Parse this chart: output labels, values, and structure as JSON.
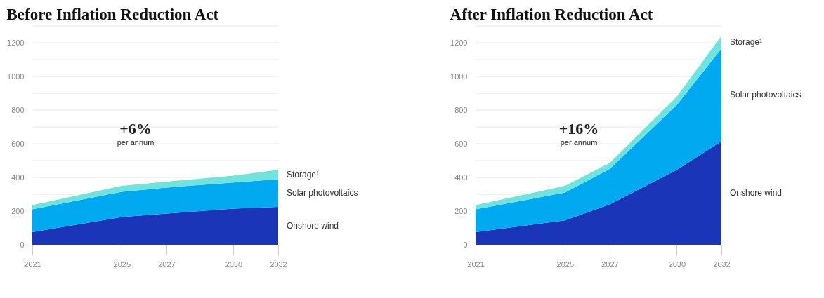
{
  "chart_data": [
    {
      "type": "area",
      "stacked": true,
      "title": "Before Inflation Reduction Act",
      "annotations": [
        "+6%",
        "per annum"
      ],
      "x": [
        2021,
        2025,
        2027,
        2030,
        2032
      ],
      "xlim": [
        2021,
        2032
      ],
      "xticks": [
        2021,
        2025,
        2027,
        2030,
        2032
      ],
      "ylim": [
        0,
        1300
      ],
      "yticks": [
        0,
        200,
        {
          "value": 300,
          "label": null
        },
        400,
        {
          "value": 500,
          "label": null
        },
        600,
        {
          "value": 700,
          "label": null
        },
        800,
        {
          "value": 900,
          "label": null
        },
        1000,
        {
          "value": 1100,
          "label": null
        },
        1200,
        {
          "value": 1300,
          "label": null
        }
      ],
      "grid": "y",
      "series": [
        {
          "name": "Onshore wind",
          "color": "#1a35b8",
          "values": [
            75,
            165,
            185,
            215,
            225
          ]
        },
        {
          "name": "Solar photovoltaics",
          "color": "#00a9f0",
          "values": [
            135,
            150,
            155,
            155,
            165
          ]
        },
        {
          "name": "Storage¹",
          "color": "#6fe3dc",
          "values": [
            25,
            35,
            35,
            40,
            55
          ]
        }
      ]
    },
    {
      "type": "area",
      "stacked": true,
      "title": "After Inflation Reduction Act",
      "annotations": [
        "+16%",
        "per annum"
      ],
      "x": [
        2021,
        2025,
        2027,
        2030,
        2032
      ],
      "xlim": [
        2021,
        2032
      ],
      "xticks": [
        2021,
        2025,
        2027,
        2030,
        2032
      ],
      "ylim": [
        0,
        1300
      ],
      "yticks": [
        0,
        200,
        {
          "value": 300,
          "label": null
        },
        400,
        {
          "value": 500,
          "label": null
        },
        600,
        {
          "value": 700,
          "label": null
        },
        800,
        {
          "value": 900,
          "label": null
        },
        1000,
        {
          "value": 1100,
          "label": null
        },
        1200,
        {
          "value": 1300,
          "label": null
        }
      ],
      "grid": "y",
      "series": [
        {
          "name": "Onshore wind",
          "color": "#1a35b8",
          "values": [
            75,
            145,
            240,
            445,
            615
          ]
        },
        {
          "name": "Solar photovoltaics",
          "color": "#00a9f0",
          "values": [
            135,
            165,
            210,
            385,
            550
          ]
        },
        {
          "name": "Storage¹",
          "color": "#6fe3dc",
          "values": [
            25,
            40,
            35,
            50,
            75
          ]
        }
      ]
    }
  ]
}
